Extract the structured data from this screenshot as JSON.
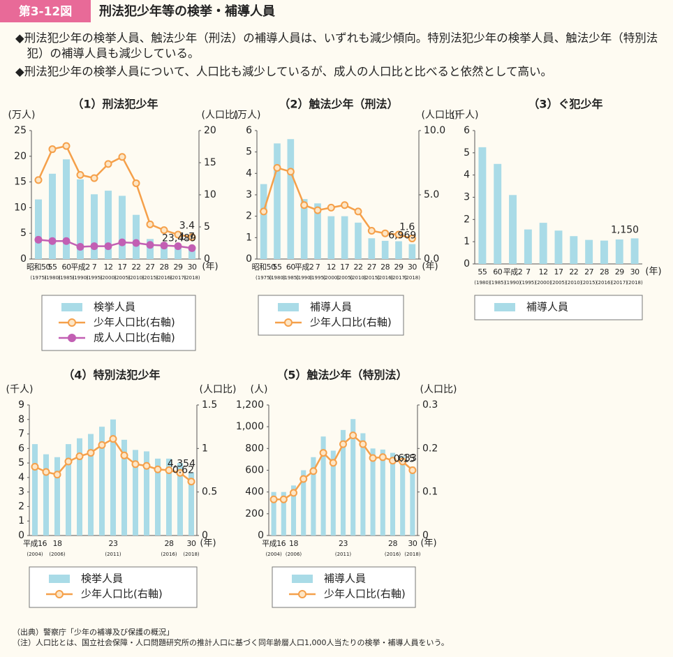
{
  "header": {
    "label": "第3-12図",
    "title": "刑法犯少年等の検挙・補導人員"
  },
  "bullets": [
    "◆刑法犯少年の検挙人員、触法少年（刑法）の補導人員は、いずれも減少傾向。特別法犯少年の検挙人員、触法少年（特別法犯）の補導人員も減少している。",
    "◆刑法犯少年の検挙人員について、人口比も減少しているが、成人の人口比と比べると依然として高い。"
  ],
  "chart_data": [
    {
      "type": "combo",
      "title": "（1）刑法犯少年",
      "ylabel": "(万人)",
      "y2label": "(人口比)",
      "xlabel": "(年)",
      "categories": [
        "昭和50",
        "55",
        "60",
        "平成2",
        "7",
        "12",
        "17",
        "22",
        "27",
        "28",
        "29",
        "30"
      ],
      "subcategories": [
        "(1975)",
        "(1980)",
        "(1985)",
        "(1990)",
        "(1995)",
        "(2000)",
        "(2005)",
        "(2010)",
        "(2015)",
        "(2016)",
        "(2017)",
        "(2018)"
      ],
      "ylim": [
        0,
        25
      ],
      "yticks": [
        0,
        5,
        10,
        15,
        20,
        25
      ],
      "y2lim": [
        0,
        20
      ],
      "y2ticks": [
        0,
        5,
        10,
        15,
        20
      ],
      "series": [
        {
          "name": "検挙人員",
          "type": "bar",
          "color": "#a9dbe7",
          "values": [
            11.6,
            16.6,
            19.4,
            15.5,
            12.6,
            13.3,
            12.3,
            8.6,
            3.9,
            3.2,
            2.7,
            2.3489
          ],
          "value_labels": [
            null,
            null,
            null,
            null,
            null,
            null,
            null,
            null,
            null,
            null,
            null,
            "23,489"
          ]
        },
        {
          "name": "少年人口比(右軸)",
          "type": "line",
          "axis": "y2",
          "color": "#f5a04a",
          "marker_fill": "#fde6c6",
          "values": [
            12.3,
            17.1,
            17.6,
            13.1,
            12.6,
            14.8,
            15.9,
            11.8,
            5.4,
            4.5,
            3.8,
            3.4
          ],
          "value_labels": [
            null,
            null,
            null,
            null,
            null,
            null,
            null,
            null,
            null,
            null,
            null,
            "3.4"
          ]
        },
        {
          "name": "成人人口比(右軸)",
          "type": "line",
          "axis": "y2",
          "color": "#c25fb3",
          "marker_fill": "#c25fb3",
          "values": [
            3.0,
            2.8,
            2.8,
            1.9,
            2.0,
            2.0,
            2.6,
            2.5,
            2.2,
            2.1,
            2.0,
            1.7
          ],
          "value_labels": [
            null,
            null,
            null,
            null,
            null,
            null,
            null,
            null,
            null,
            null,
            null,
            "1.7"
          ]
        }
      ]
    },
    {
      "type": "combo",
      "title": "（2）触法少年（刑法）",
      "ylabel": "(万人)",
      "y2label": "(人口比)",
      "xlabel": "(年)",
      "categories": [
        "昭和50",
        "55",
        "60",
        "平成2",
        "7",
        "12",
        "17",
        "22",
        "27",
        "28",
        "29",
        "30"
      ],
      "subcategories": [
        "(1975)",
        "(1980)",
        "(1985)",
        "(1990)",
        "(1995)",
        "(2000)",
        "(2005)",
        "(2010)",
        "(2015)",
        "(2016)",
        "(2017)",
        "(2018)"
      ],
      "ylim": [
        0,
        6
      ],
      "yticks": [
        0,
        1,
        2,
        3,
        4,
        5,
        6
      ],
      "y2lim": [
        0,
        10
      ],
      "y2ticks": [
        {
          "value": 0,
          "label": "0.0"
        },
        {
          "value": 5,
          "label": "5.0"
        },
        {
          "value": 10,
          "label": "10.0"
        }
      ],
      "series": [
        {
          "name": "補導人員",
          "type": "bar",
          "color": "#a9dbe7",
          "values": [
            3.5,
            5.4,
            5.6,
            2.8,
            2.6,
            2.0,
            2.0,
            1.7,
            0.97,
            0.85,
            0.83,
            0.6969
          ],
          "value_labels": [
            null,
            null,
            null,
            null,
            null,
            null,
            null,
            null,
            null,
            null,
            null,
            "6,969"
          ]
        },
        {
          "name": "少年人口比(右軸)",
          "type": "line",
          "axis": "y2",
          "color": "#f5a04a",
          "marker_fill": "#fde6c6",
          "values": [
            3.7,
            7.1,
            6.8,
            4.2,
            3.8,
            4.0,
            4.2,
            3.7,
            2.2,
            2.0,
            1.9,
            1.6
          ],
          "value_labels": [
            null,
            null,
            null,
            null,
            null,
            null,
            null,
            null,
            null,
            null,
            null,
            "1.6"
          ]
        }
      ]
    },
    {
      "type": "combo",
      "title": "（3）ぐ犯少年",
      "ylabel": "(千人)",
      "xlabel": "(年)",
      "categories": [
        "55",
        "60",
        "平成2",
        "7",
        "12",
        "17",
        "22",
        "27",
        "28",
        "29",
        "30"
      ],
      "subcategories": [
        "(1980)",
        "(1985)",
        "(1990)",
        "(1995)",
        "(2000)",
        "(2005)",
        "(2010)",
        "(2015)",
        "(2016)",
        "(2017)",
        "(2018)"
      ],
      "ylim": [
        0,
        6
      ],
      "yticks": [
        0,
        1,
        2,
        3,
        4,
        5,
        6
      ],
      "series": [
        {
          "name": "補導人員",
          "type": "bar",
          "color": "#a9dbe7",
          "values": [
            5.25,
            4.5,
            3.1,
            1.55,
            1.85,
            1.5,
            1.25,
            1.08,
            1.05,
            1.1,
            1.15
          ],
          "value_labels": [
            null,
            null,
            null,
            null,
            null,
            null,
            null,
            null,
            null,
            null,
            "1,150"
          ]
        }
      ]
    },
    {
      "type": "combo",
      "title": "（4）特別法犯少年",
      "ylabel": "(千人)",
      "y2label": "(人口比)",
      "xlabel": "(年)",
      "categories": [
        "平成16",
        null,
        "18",
        null,
        null,
        null,
        null,
        "23",
        null,
        null,
        null,
        null,
        "28",
        null,
        "30"
      ],
      "subcategories": [
        "(2004)",
        null,
        "(2006)",
        null,
        null,
        null,
        null,
        "(2011)",
        null,
        null,
        null,
        null,
        "(2016)",
        null,
        "(2018)"
      ],
      "ylim": [
        0,
        9
      ],
      "yticks": [
        0,
        1,
        2,
        3,
        4,
        5,
        6,
        7,
        8,
        9
      ],
      "y2lim": [
        0,
        1.5
      ],
      "y2ticks": [
        0,
        0.5,
        1,
        1.5
      ],
      "series": [
        {
          "name": "検挙人員",
          "type": "bar",
          "color": "#a9dbe7",
          "values": [
            6.3,
            5.6,
            5.4,
            6.3,
            6.7,
            7.0,
            7.5,
            8.0,
            6.6,
            5.9,
            5.8,
            5.3,
            5.3,
            5.0,
            4.354
          ],
          "value_labels": [
            null,
            null,
            null,
            null,
            null,
            null,
            null,
            null,
            null,
            null,
            null,
            null,
            null,
            null,
            "4,354"
          ]
        },
        {
          "name": "少年人口比(右軸)",
          "type": "line",
          "axis": "y2",
          "color": "#f5a04a",
          "marker_fill": "#fde6c6",
          "values": [
            0.79,
            0.73,
            0.7,
            0.85,
            0.91,
            0.95,
            1.04,
            1.11,
            0.92,
            0.82,
            0.8,
            0.76,
            0.75,
            0.72,
            0.62
          ],
          "value_labels": [
            null,
            null,
            null,
            null,
            null,
            null,
            null,
            null,
            null,
            null,
            null,
            null,
            null,
            null,
            "0.62"
          ]
        }
      ]
    },
    {
      "type": "combo",
      "title": "（5）触法少年（特別法）",
      "ylabel": "(人)",
      "y2label": "(人口比)",
      "xlabel": "(年)",
      "categories": [
        "平成16",
        null,
        "18",
        null,
        null,
        null,
        null,
        "23",
        null,
        null,
        null,
        null,
        "28",
        null,
        "30"
      ],
      "subcategories": [
        "(2004)",
        null,
        "(2006)",
        null,
        null,
        null,
        null,
        "(2011)",
        null,
        null,
        null,
        null,
        "(2016)",
        null,
        "(2018)"
      ],
      "ylim": [
        0,
        1200
      ],
      "yticks": [
        0,
        200,
        400,
        600,
        800,
        {
          "value": 1000,
          "label": "1,000"
        },
        {
          "value": 1200,
          "label": "1,200"
        }
      ],
      "y2lim": [
        0,
        0.3
      ],
      "y2ticks": [
        0,
        0.1,
        0.2,
        0.3
      ],
      "series": [
        {
          "name": "補導人員",
          "type": "bar",
          "color": "#a9dbe7",
          "values": [
            400,
            400,
            460,
            600,
            720,
            910,
            780,
            970,
            1070,
            940,
            800,
            790,
            760,
            730,
            633
          ],
          "value_labels": [
            null,
            null,
            null,
            null,
            null,
            null,
            null,
            null,
            null,
            null,
            null,
            null,
            null,
            null,
            "633"
          ]
        },
        {
          "name": "少年人口比(右軸)",
          "type": "line",
          "axis": "y2",
          "color": "#f5a04a",
          "marker_fill": "#fde6c6",
          "values": [
            0.083,
            0.083,
            0.098,
            0.13,
            0.148,
            0.19,
            0.167,
            0.21,
            0.23,
            0.21,
            0.178,
            0.18,
            0.172,
            0.17,
            0.15
          ],
          "value_labels": [
            null,
            null,
            null,
            null,
            null,
            null,
            null,
            null,
            null,
            null,
            null,
            null,
            null,
            null,
            "0.15"
          ]
        }
      ]
    }
  ],
  "notes": [
    "（出典）警察庁「少年の補導及び保護の概況」",
    "（注）人口比とは、国立社会保障・人口問題研究所の推計人口に基づく同年齢層人口1,000人当たりの検挙・補導人員をいう。"
  ]
}
